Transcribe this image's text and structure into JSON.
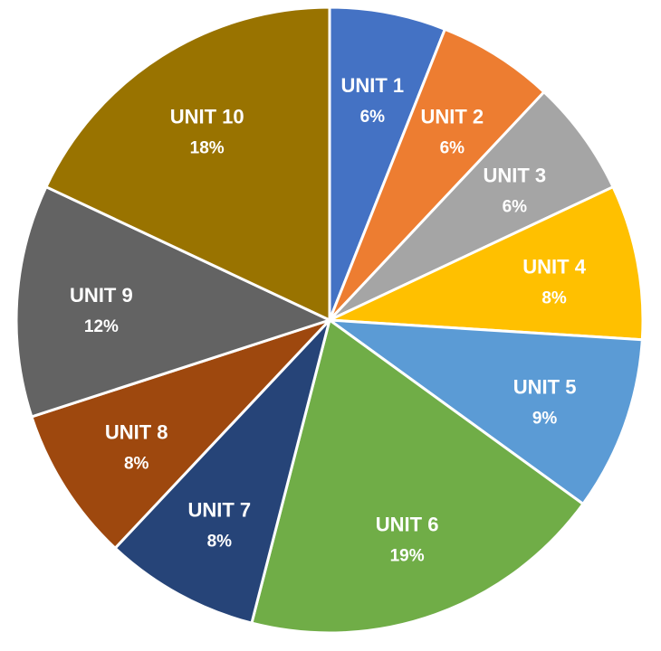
{
  "chart_data": {
    "type": "pie",
    "title": "",
    "start_angle_deg": 0,
    "direction": "clockwise",
    "slices": [
      {
        "label": "UNIT 1",
        "value": 6,
        "display": "6%",
        "color": "#4472C4"
      },
      {
        "label": "UNIT 2",
        "value": 6,
        "display": "6%",
        "color": "#ED7D31"
      },
      {
        "label": "UNIT 3",
        "value": 6,
        "display": "6%",
        "color": "#A5A5A5"
      },
      {
        "label": "UNIT 4",
        "value": 8,
        "display": "8%",
        "color": "#FFC000"
      },
      {
        "label": "UNIT 5",
        "value": 9,
        "display": "9%",
        "color": "#5B9BD5"
      },
      {
        "label": "UNIT 6",
        "value": 19,
        "display": "19%",
        "color": "#70AD47"
      },
      {
        "label": "UNIT 7",
        "value": 8,
        "display": "8%",
        "color": "#264478"
      },
      {
        "label": "UNIT 8",
        "value": 8,
        "display": "8%",
        "color": "#9E480E"
      },
      {
        "label": "UNIT 9",
        "value": 12,
        "display": "12%",
        "color": "#636363"
      },
      {
        "label": "UNIT 10",
        "value": 18,
        "display": "18%",
        "color": "#997300"
      }
    ],
    "legend": "none",
    "data_labels": "inside"
  }
}
